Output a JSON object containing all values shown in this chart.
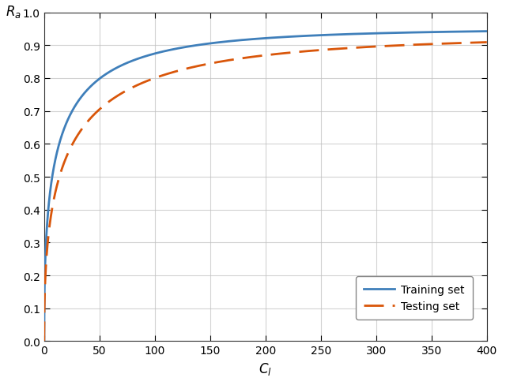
{
  "title": "",
  "xlabel": "$C_l$",
  "ylabel": "$R_a$",
  "xlim": [
    0,
    400
  ],
  "ylim": [
    0,
    1
  ],
  "xticks": [
    0,
    50,
    100,
    150,
    200,
    250,
    300,
    350,
    400
  ],
  "yticks": [
    0,
    0.1,
    0.2,
    0.3,
    0.4,
    0.5,
    0.6,
    0.7,
    0.8,
    0.9,
    1
  ],
  "training_color": "#3f7fba",
  "testing_color": "#d9560a",
  "training_label": "Training set",
  "testing_label": "Testing set",
  "linewidth": 2.0,
  "grid_color": "#c0c0c0",
  "grid_alpha": 0.7,
  "background_color": "#ffffff",
  "train_k": 1.8,
  "train_alpha": 0.28,
  "test_k": 1.1,
  "test_alpha": 0.28
}
